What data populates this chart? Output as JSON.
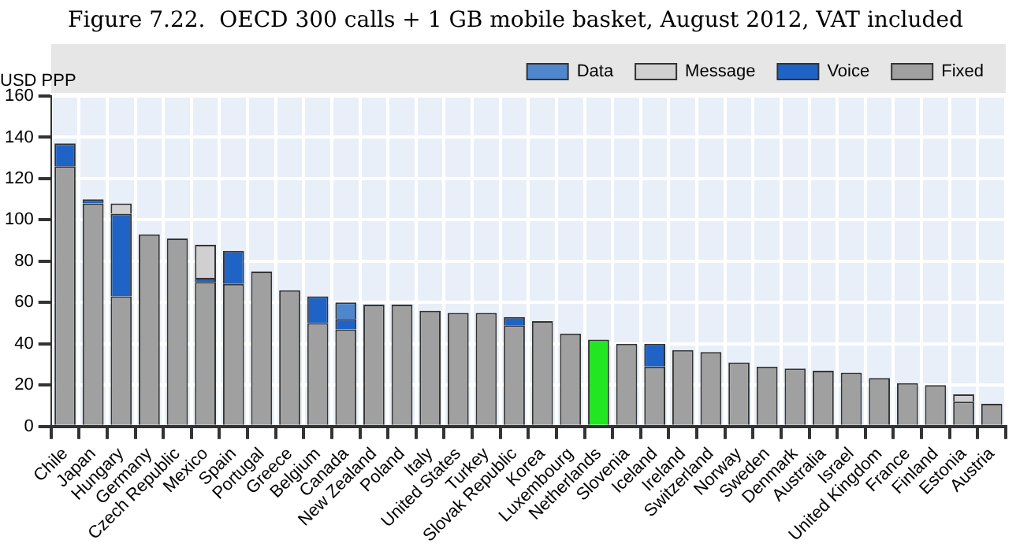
{
  "chart_data": {
    "type": "bar",
    "title": "Figure 7.22.  OECD 300 calls + 1 GB mobile basket, August 2012, VAT included",
    "ylabel": "USD PPP",
    "categories": [
      "Chile",
      "Japan",
      "Hungary",
      "Germany",
      "Czech Republic",
      "Mexico",
      "Spain",
      "Portugal",
      "Greece",
      "Belgium",
      "Canada",
      "New Zealand",
      "Poland",
      "Italy",
      "United States",
      "Turkey",
      "Slovak Republic",
      "Korea",
      "Luxembourg",
      "Netherlands",
      "Slovenia",
      "Iceland",
      "Ireland",
      "Switzerland",
      "Norway",
      "Sweden",
      "Denmark",
      "Australia",
      "Israel",
      "United Kingdom",
      "France",
      "Finland",
      "Estonia",
      "Austria"
    ],
    "stacked": true,
    "ylim": [
      0,
      160
    ],
    "yticks": [
      0,
      20,
      40,
      60,
      80,
      100,
      120,
      140,
      160
    ],
    "grid": true,
    "legend": "top",
    "series": [
      {
        "name": "Fixed",
        "color": "#a0a0a0",
        "colors": [
          "#a0a0a0",
          "#a0a0a0",
          "#a0a0a0",
          "#a0a0a0",
          "#a0a0a0",
          "#a0a0a0",
          "#a0a0a0",
          "#a0a0a0",
          "#a0a0a0",
          "#a0a0a0",
          "#a0a0a0",
          "#a0a0a0",
          "#a0a0a0",
          "#a0a0a0",
          "#a0a0a0",
          "#a0a0a0",
          "#a0a0a0",
          "#a0a0a0",
          "#a0a0a0",
          "#22e622",
          "#a0a0a0",
          "#a0a0a0",
          "#a0a0a0",
          "#a0a0a0",
          "#a0a0a0",
          "#a0a0a0",
          "#a0a0a0",
          "#a0a0a0",
          "#a0a0a0",
          "#a0a0a0",
          "#a0a0a0",
          "#a0a0a0",
          "#a0a0a0",
          "#a0a0a0"
        ],
        "values": [
          126,
          108,
          63,
          93,
          91,
          70,
          69,
          75,
          66,
          50,
          47,
          59,
          59,
          56,
          55,
          55,
          49,
          51,
          45,
          42,
          40,
          29,
          37,
          36,
          31,
          29,
          28,
          27,
          26,
          23.5,
          21,
          20,
          12,
          11
        ]
      },
      {
        "name": "Voice",
        "color": "#1f63c6",
        "values": [
          11,
          2,
          40,
          null,
          null,
          2,
          16,
          null,
          null,
          13,
          5,
          null,
          null,
          null,
          null,
          null,
          4,
          null,
          null,
          null,
          null,
          11,
          null,
          null,
          null,
          null,
          null,
          null,
          null,
          null,
          null,
          null,
          null,
          null
        ]
      },
      {
        "name": "Message",
        "color": "#d0d0d0",
        "values": [
          null,
          null,
          5,
          null,
          null,
          16,
          null,
          null,
          null,
          null,
          null,
          null,
          null,
          null,
          null,
          null,
          null,
          null,
          null,
          null,
          null,
          null,
          null,
          null,
          null,
          null,
          null,
          null,
          null,
          null,
          null,
          null,
          3.5,
          null
        ]
      },
      {
        "name": "Data",
        "color": "#4f86cc",
        "values": [
          null,
          null,
          null,
          null,
          null,
          null,
          null,
          null,
          null,
          null,
          8,
          null,
          null,
          null,
          null,
          null,
          null,
          null,
          null,
          null,
          null,
          null,
          null,
          null,
          null,
          null,
          null,
          null,
          null,
          null,
          null,
          null,
          null,
          null
        ]
      }
    ]
  }
}
